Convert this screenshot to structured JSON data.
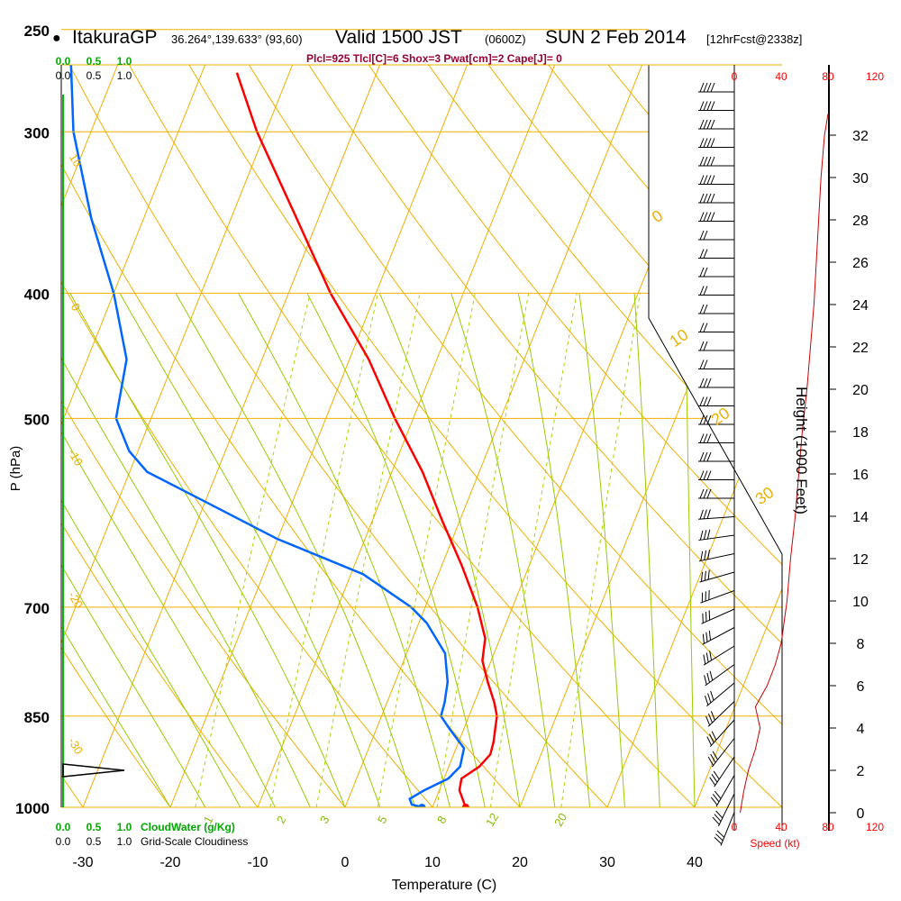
{
  "header": {
    "station": "ItakuraGP",
    "coords": "36.264°,139.633° (93,60)",
    "valid": "Valid 1500 JST",
    "zulu": "(0600Z)",
    "date": "SUN 2 Feb 2014",
    "forecast": "[12hrFcst@2338z]",
    "indices": "Plcl=925 Tlcl[C]=6 Shox=3 Pwat[cm]=2 Cape[J]= 0"
  },
  "chart_data": {
    "type": "skew-t",
    "xlabel": "Temperature (C)",
    "ylabel": "P (hPa)",
    "y2label": "Height (1000 Feet)",
    "speed_label": "Speed (kt)",
    "cloudwater_label": "CloudWater (g/Kg)",
    "cloudiness_label": "Grid-Scale Cloudiness",
    "temp_ticks": [
      -30,
      -20,
      -10,
      0,
      10,
      20,
      30,
      40
    ],
    "pressure_ticks": [
      250,
      300,
      400,
      500,
      700,
      850,
      1000
    ],
    "height_ticks": [
      0,
      2,
      4,
      6,
      8,
      10,
      12,
      14,
      16,
      18,
      20,
      22,
      24,
      26,
      28,
      30,
      32
    ],
    "speed_ticks": [
      0,
      40,
      80,
      120
    ],
    "cloud_ticks": [
      "0.0",
      "0.5",
      "1.0"
    ],
    "dry_adiabat_labels": [
      "10",
      "0",
      "-10",
      "-20",
      "-30"
    ],
    "moist_adiabat_labels": [
      "0",
      "10",
      "20",
      "30"
    ],
    "mixing_ratio_labels": [
      "1",
      "2",
      "3",
      "5",
      "8",
      "12",
      "20"
    ],
    "temperature_profile": {
      "p": [
        1000,
        990,
        970,
        950,
        930,
        910,
        890,
        870,
        850,
        830,
        800,
        770,
        740,
        700,
        650,
        600,
        550,
        500,
        450,
        400,
        350,
        300,
        270
      ],
      "t": [
        13.8,
        13.3,
        12.3,
        12.0,
        13.5,
        14.2,
        14.0,
        13.6,
        13.2,
        12.3,
        10.6,
        9.0,
        8.3,
        6.0,
        2.3,
        -2.0,
        -6.5,
        -12.1,
        -17.8,
        -25.2,
        -32.5,
        -41.0,
        -46.0
      ],
      "color": "#ff0000"
    },
    "dewpoint_profile": {
      "p": [
        1000,
        995,
        985,
        970,
        950,
        930,
        900,
        870,
        850,
        830,
        800,
        760,
        720,
        700,
        660,
        620,
        580,
        550,
        530,
        500,
        450,
        400,
        350,
        300,
        260
      ],
      "t": [
        8.8,
        7.5,
        7.0,
        8.3,
        10.5,
        11.3,
        10.9,
        8.4,
        6.8,
        6.6,
        6.0,
        4.4,
        0.9,
        -1.6,
        -8.6,
        -20.0,
        -30.0,
        -38.0,
        -41.0,
        -44.0,
        -45.5,
        -50.0,
        -56.0,
        -62.0,
        -66.0
      ],
      "color": "#0066ff"
    },
    "wind_speed_profile": {
      "height_kft": [
        0,
        1,
        2,
        3,
        4,
        5,
        6,
        7,
        8,
        10,
        12,
        14,
        16,
        18,
        20,
        22,
        24,
        26,
        28,
        30,
        32,
        33
      ],
      "speed_kt": [
        5,
        8,
        12,
        18,
        22,
        18,
        28,
        35,
        40,
        45,
        48,
        52,
        55,
        58,
        62,
        65,
        68,
        70,
        72,
        74,
        77,
        80
      ],
      "color": "#cc0000"
    }
  }
}
